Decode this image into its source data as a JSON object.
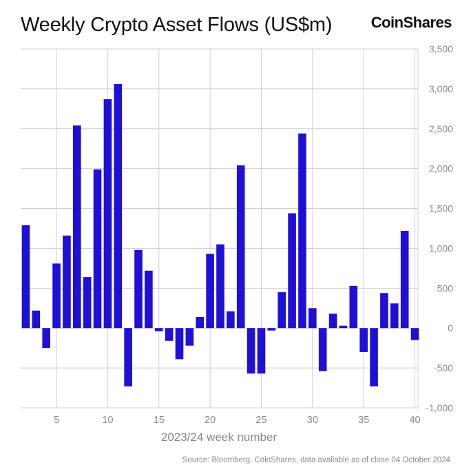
{
  "title": "Weekly Crypto Asset Flows (US$m)",
  "brand": "CoinShares",
  "source": "Source: Bloomberg, CoinShares, data available as of close 04 October 2024",
  "colors": {
    "bar": "#1f10d6",
    "grid": "#cfcfcf",
    "axis_text": "#888888"
  },
  "chart_data": {
    "type": "bar",
    "title": "Weekly Crypto Asset Flows (US$m)",
    "xlabel": "2023/24 week number",
    "ylabel": "",
    "ylim": [
      -1000,
      3500
    ],
    "yticks": [
      3500,
      3000,
      2500,
      2000,
      1500,
      1000,
      500,
      0,
      -500,
      -1000
    ],
    "ytick_labels": [
      "3,500",
      "3,000",
      "2,500",
      "2,000",
      "1,500",
      "1,000",
      "500",
      "0",
      "-500",
      "-1,000"
    ],
    "xticks": [
      5,
      10,
      15,
      20,
      25,
      30,
      35,
      40
    ],
    "y_axis_position": "right",
    "grid": true,
    "categories": [
      2,
      3,
      4,
      5,
      6,
      7,
      8,
      9,
      10,
      11,
      12,
      13,
      14,
      15,
      16,
      17,
      18,
      19,
      20,
      21,
      22,
      23,
      24,
      25,
      26,
      27,
      28,
      29,
      30,
      31,
      32,
      33,
      34,
      35,
      36,
      37,
      38,
      39,
      40
    ],
    "values": [
      1290,
      220,
      -250,
      810,
      1160,
      2540,
      640,
      1990,
      2870,
      3060,
      -730,
      980,
      720,
      -40,
      -160,
      -390,
      -220,
      140,
      930,
      1050,
      210,
      2040,
      -570,
      -570,
      -30,
      450,
      1440,
      2440,
      250,
      -540,
      180,
      30,
      530,
      -300,
      -730,
      440,
      310,
      1220,
      -150
    ]
  }
}
